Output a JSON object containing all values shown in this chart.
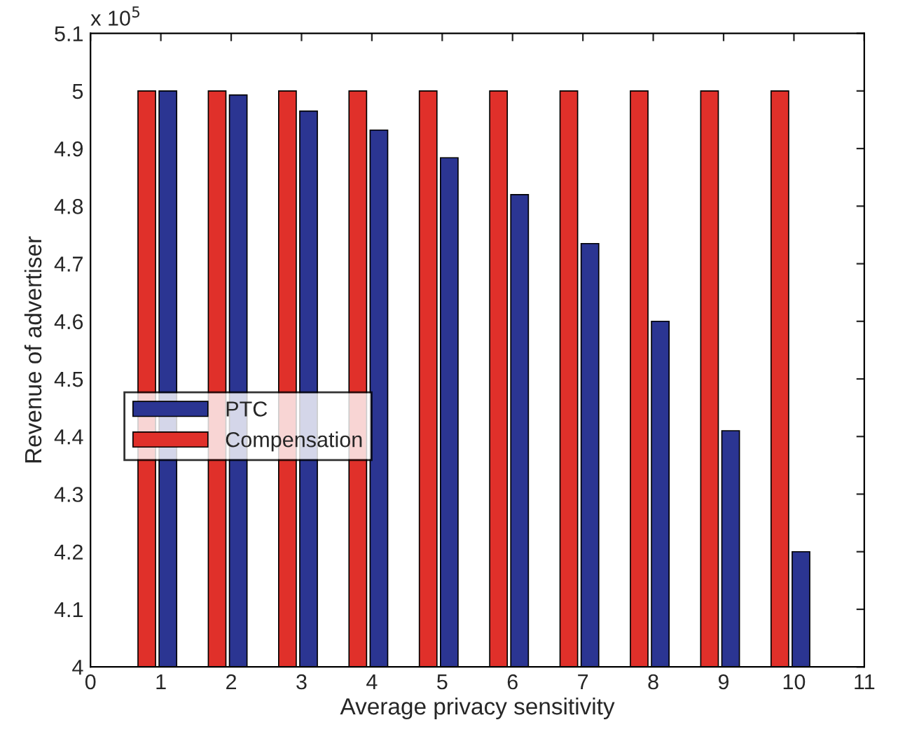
{
  "chart_data": {
    "type": "bar",
    "xlabel": "Average privacy sensitivity",
    "ylabel": "Revenue of advertiser",
    "x": [
      1,
      2,
      3,
      4,
      5,
      6,
      7,
      8,
      9,
      10
    ],
    "series": [
      {
        "name": "PTC",
        "color": "#2b3592",
        "values": [
          5.0,
          4.993,
          4.965,
          4.932,
          4.884,
          4.82,
          4.735,
          4.6,
          4.41,
          4.2
        ]
      },
      {
        "name": "Compensation",
        "color": "#e0302a",
        "values": [
          5.0,
          5.0,
          5.0,
          5.0,
          5.0,
          5.0,
          5.0,
          5.0,
          5.0,
          5.0
        ]
      }
    ],
    "xlim": [
      0,
      11
    ],
    "xticks": [
      0,
      1,
      2,
      3,
      4,
      5,
      6,
      7,
      8,
      9,
      10,
      11
    ],
    "ylim": [
      4,
      5.1
    ],
    "yticks": [
      4,
      4.1,
      4.2,
      4.3,
      4.4,
      4.5,
      4.6,
      4.7,
      4.8,
      4.9,
      5,
      5.1
    ],
    "annotations": [
      "x 10$^{5}$"
    ],
    "grid": false,
    "legend": "left"
  }
}
